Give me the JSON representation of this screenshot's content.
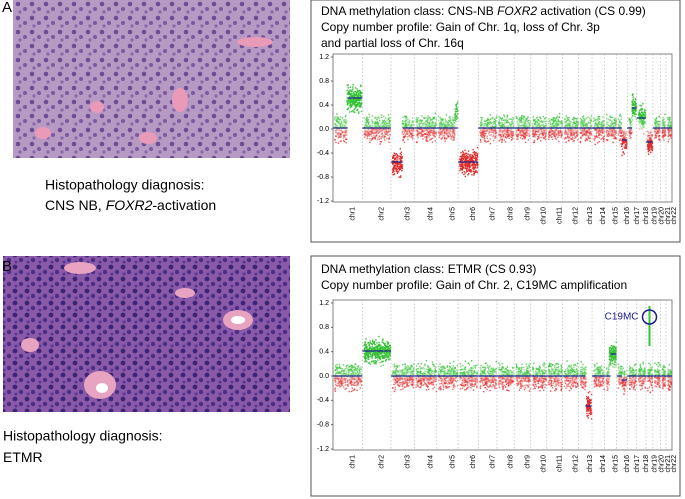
{
  "panels": [
    {
      "label": "A",
      "diagnosis": {
        "heading": "Histopathology diagnosis:",
        "parts": [
          "CNS NB, ",
          "FOXR2",
          "-activation"
        ]
      },
      "plot": {
        "lines": [
          [
            "DNA methylation class: CNS-NB ",
            "FOXR2",
            " activation (CS 0.99)"
          ],
          [
            "Copy number profile: Gain of Chr. 1q, loss of Chr. 3p"
          ],
          [
            "and partial loss of Chr. 16q"
          ]
        ],
        "yticks": [
          "1.2",
          "0.8",
          "0.4",
          "0.0",
          "-0.4",
          "-0.8",
          "-1.2"
        ]
      }
    },
    {
      "label": "B",
      "diagnosis": {
        "heading": "Histopathology diagnosis:",
        "parts": [
          "ETMR"
        ]
      },
      "plot": {
        "lines": [
          [
            "DNA methylation class: ETMR (CS 0.93)"
          ],
          [
            "Copy number profile: Gain of Chr. 2, C19MC amplification"
          ]
        ],
        "yticks": [
          "1.2",
          "0.8",
          "0.4",
          "0.0",
          "-0.4",
          "-0.8",
          "-1.2"
        ],
        "annotation": "C19MC"
      }
    }
  ],
  "chromosomes": [
    "chr1",
    "chr2",
    "chr3",
    "chr4",
    "chr5",
    "chr6",
    "chr7",
    "chr8",
    "chr9",
    "chr10",
    "chr11",
    "chr12",
    "chr13",
    "chr14",
    "chr15",
    "chr16",
    "chr17",
    "chr18",
    "chr19",
    "chr20",
    "chr21",
    "chr22"
  ]
}
